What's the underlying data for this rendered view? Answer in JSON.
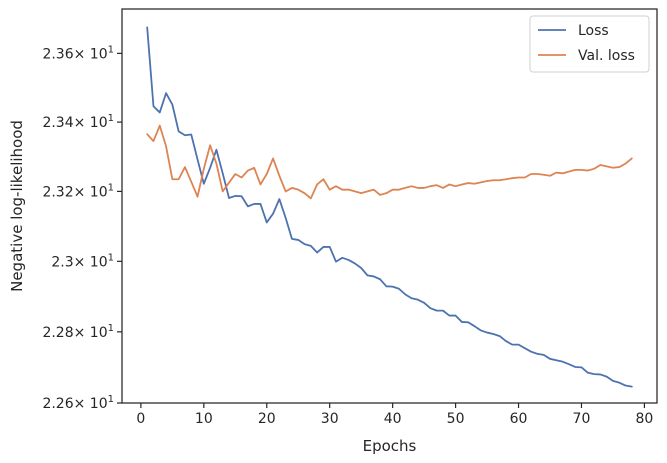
{
  "chart_data": {
    "type": "line",
    "title": "",
    "xlabel": "Epochs",
    "ylabel": "Negative log-likelihood",
    "xlim": [
      -3,
      82
    ],
    "ylim": [
      22.6,
      23.73
    ],
    "y_scale": "log",
    "grid": false,
    "legend_position": "top-right",
    "x_ticks": [
      0,
      10,
      20,
      30,
      40,
      50,
      60,
      70,
      80
    ],
    "x_tick_labels": [
      "0",
      "10",
      "20",
      "30",
      "40",
      "50",
      "60",
      "70",
      "80"
    ],
    "y_ticks": [
      {
        "value": 22.6,
        "mantissa": "2.26",
        "exponent": "1"
      },
      {
        "value": 22.8,
        "mantissa": "2.28",
        "exponent": "1"
      },
      {
        "value": 23.0,
        "mantissa": "2.3",
        "exponent": "1"
      },
      {
        "value": 23.2,
        "mantissa": "2.32",
        "exponent": "1"
      },
      {
        "value": 23.4,
        "mantissa": "2.34",
        "exponent": "1"
      },
      {
        "value": 23.6,
        "mantissa": "2.36",
        "exponent": "1"
      }
    ],
    "y_tick_base": "× 10",
    "series": [
      {
        "name": "Loss",
        "color": "#4c72b0",
        "x": [
          1,
          2,
          3,
          4,
          5,
          6,
          7,
          8,
          9,
          10,
          11,
          12,
          13,
          14,
          15,
          16,
          17,
          18,
          19,
          20,
          21,
          22,
          23,
          24,
          25,
          26,
          27,
          28,
          29,
          30,
          31,
          32,
          33,
          34,
          35,
          36,
          37,
          38,
          39,
          40,
          41,
          42,
          43,
          44,
          45,
          46,
          47,
          48,
          49,
          50,
          51,
          52,
          53,
          54,
          55,
          56,
          57,
          58,
          59,
          60,
          61,
          62,
          63,
          64,
          65,
          66,
          67,
          68,
          69,
          70,
          71,
          72,
          73,
          74,
          75,
          76,
          77,
          78
        ],
        "y": [
          23.676,
          23.446,
          23.428,
          23.484,
          23.451,
          23.373,
          23.362,
          23.364,
          23.292,
          23.222,
          23.268,
          23.32,
          23.252,
          23.181,
          23.187,
          23.186,
          23.157,
          23.164,
          23.164,
          23.111,
          23.136,
          23.178,
          23.124,
          23.064,
          23.061,
          23.049,
          23.044,
          23.025,
          23.041,
          23.041,
          22.999,
          23.01,
          23.004,
          22.994,
          22.981,
          22.96,
          22.957,
          22.949,
          22.929,
          22.928,
          22.922,
          22.906,
          22.895,
          22.891,
          22.882,
          22.867,
          22.86,
          22.86,
          22.846,
          22.846,
          22.828,
          22.827,
          22.816,
          22.804,
          22.798,
          22.794,
          22.788,
          22.774,
          22.764,
          22.764,
          22.754,
          22.744,
          22.738,
          22.735,
          22.724,
          22.72,
          22.716,
          22.709,
          22.701,
          22.7,
          22.685,
          22.681,
          22.68,
          22.674,
          22.662,
          22.657,
          22.649,
          22.646
        ]
      },
      {
        "name": "Val. loss",
        "color": "#dd8452",
        "x": [
          1,
          2,
          3,
          4,
          5,
          6,
          7,
          8,
          9,
          10,
          11,
          12,
          13,
          14,
          15,
          16,
          17,
          18,
          19,
          20,
          21,
          22,
          23,
          24,
          25,
          26,
          27,
          28,
          29,
          30,
          31,
          32,
          33,
          34,
          35,
          36,
          37,
          38,
          39,
          40,
          41,
          42,
          43,
          44,
          45,
          46,
          47,
          48,
          49,
          50,
          51,
          52,
          53,
          54,
          55,
          56,
          57,
          58,
          59,
          60,
          61,
          62,
          63,
          64,
          65,
          66,
          67,
          68,
          69,
          70,
          71,
          72,
          73,
          74,
          75,
          76,
          77,
          78
        ],
        "y": [
          23.365,
          23.345,
          23.39,
          23.33,
          23.235,
          23.235,
          23.27,
          23.228,
          23.185,
          23.265,
          23.333,
          23.28,
          23.2,
          23.225,
          23.25,
          23.24,
          23.26,
          23.268,
          23.22,
          23.25,
          23.295,
          23.245,
          23.2,
          23.21,
          23.205,
          23.195,
          23.18,
          23.22,
          23.235,
          23.205,
          23.215,
          23.205,
          23.205,
          23.2,
          23.195,
          23.2,
          23.205,
          23.19,
          23.195,
          23.205,
          23.205,
          23.21,
          23.215,
          23.21,
          23.21,
          23.215,
          23.218,
          23.21,
          23.22,
          23.215,
          23.22,
          23.224,
          23.222,
          23.226,
          23.23,
          23.232,
          23.232,
          23.235,
          23.238,
          23.24,
          23.24,
          23.25,
          23.25,
          23.248,
          23.245,
          23.254,
          23.252,
          23.257,
          23.262,
          23.262,
          23.26,
          23.265,
          23.276,
          23.272,
          23.268,
          23.27,
          23.28,
          23.295
        ]
      }
    ]
  }
}
